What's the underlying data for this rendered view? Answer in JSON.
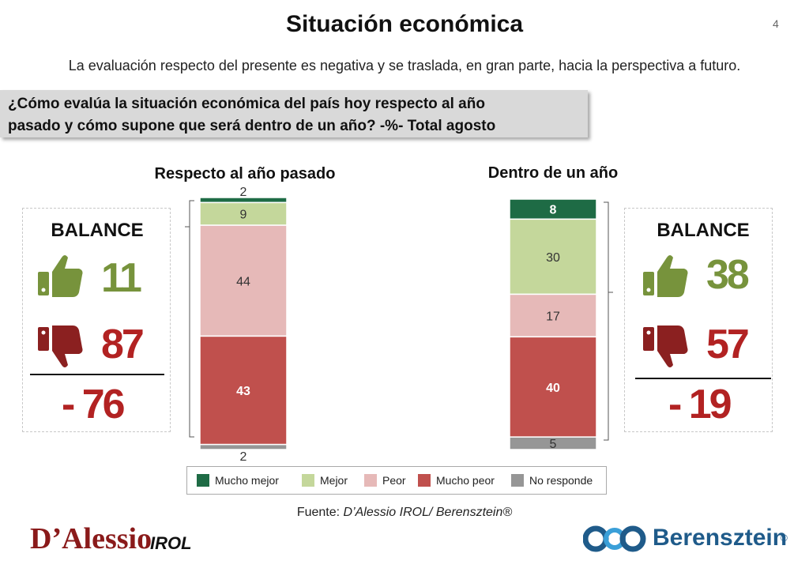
{
  "header": {
    "title": "Situación económica",
    "page_number": "4",
    "subtitle": "La evaluación respecto del presente es negativa y se traslada, en gran parte, hacia la perspectiva a futuro.",
    "question_line1": "¿Cómo evalúa la situación económica del país hoy respecto al año",
    "question_line2": "pasado y cómo supone que será dentro de un año? -%- Total agosto"
  },
  "colors": {
    "mucho_mejor": "#1e6b45",
    "mejor": "#c4d79b",
    "peor": "#e6b9b8",
    "mucho_peor": "#c0504d",
    "no_responde": "#969696",
    "positive": "#77933c",
    "negative": "#b22222"
  },
  "chart_data": [
    {
      "type": "bar",
      "stacked": true,
      "title": "Respecto al año pasado",
      "series": [
        {
          "name": "Mucho mejor",
          "values": [
            2
          ]
        },
        {
          "name": "Mejor",
          "values": [
            9
          ]
        },
        {
          "name": "Peor",
          "values": [
            44
          ]
        },
        {
          "name": "Mucho peor",
          "values": [
            43
          ]
        },
        {
          "name": "No responde",
          "values": [
            2
          ]
        }
      ]
    },
    {
      "type": "bar",
      "stacked": true,
      "title": "Dentro de un año",
      "series": [
        {
          "name": "Mucho mejor",
          "values": [
            8
          ]
        },
        {
          "name": "Mejor",
          "values": [
            30
          ]
        },
        {
          "name": "Peor",
          "values": [
            17
          ]
        },
        {
          "name": "Mucho peor",
          "values": [
            40
          ]
        },
        {
          "name": "No responde",
          "values": [
            5
          ]
        }
      ]
    }
  ],
  "balance_left": {
    "label": "BALANCE",
    "positive": "11",
    "negative": "87",
    "result": "- 76"
  },
  "balance_right": {
    "label": "BALANCE",
    "positive": "38",
    "negative": "57",
    "result": "- 19"
  },
  "legend": [
    "Mucho mejor",
    "Mejor",
    "Peor",
    "Mucho peor",
    "No responde"
  ],
  "footer": {
    "source_prefix": "Fuente: ",
    "source_italic": "D’Alessio IROL/ Berensztein®",
    "logo_left": "D’Alessio",
    "logo_left_suffix": "IROL",
    "logo_right": "Berensztein",
    "logo_right_reg": "®"
  }
}
